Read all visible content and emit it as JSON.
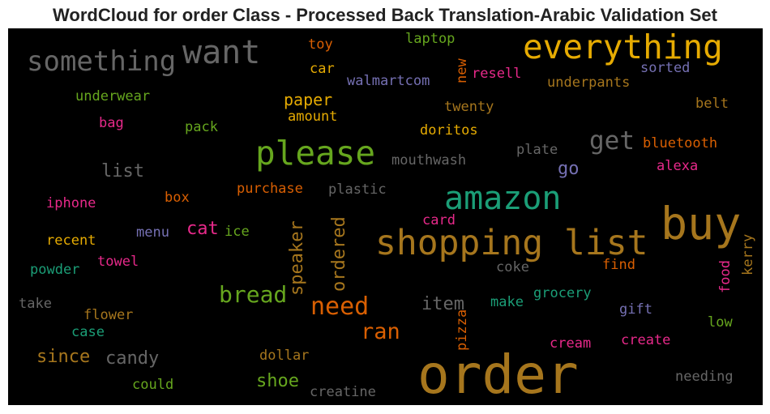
{
  "chart_data": {
    "type": "wordcloud",
    "title": "WordCloud for order Class - Processed Back Translation-Arabic Validation Set",
    "background": "#000000",
    "words": [
      {
        "text": "something",
        "color": "#666666"
      },
      {
        "text": "want",
        "color": "#666666"
      },
      {
        "text": "everything",
        "color": "#e6ab02"
      },
      {
        "text": "toy",
        "color": "#d95f02"
      },
      {
        "text": "laptop",
        "color": "#66a61e"
      },
      {
        "text": "car",
        "color": "#e6ab02"
      },
      {
        "text": "new",
        "color": "#d95f02"
      },
      {
        "text": "resell",
        "color": "#e7298a"
      },
      {
        "text": "sorted",
        "color": "#7570b3"
      },
      {
        "text": "walmartcom",
        "color": "#7570b3"
      },
      {
        "text": "underpants",
        "color": "#a6761d"
      },
      {
        "text": "underwear",
        "color": "#66a61e"
      },
      {
        "text": "paper",
        "color": "#e6ab02"
      },
      {
        "text": "twenty",
        "color": "#a6761d"
      },
      {
        "text": "belt",
        "color": "#a6761d"
      },
      {
        "text": "amount",
        "color": "#e6ab02"
      },
      {
        "text": "bag",
        "color": "#e7298a"
      },
      {
        "text": "pack",
        "color": "#66a61e"
      },
      {
        "text": "doritos",
        "color": "#e6ab02"
      },
      {
        "text": "get",
        "color": "#666666"
      },
      {
        "text": "please",
        "color": "#66a61e"
      },
      {
        "text": "plate",
        "color": "#666666"
      },
      {
        "text": "bluetooth",
        "color": "#d95f02"
      },
      {
        "text": "mouthwash",
        "color": "#666666"
      },
      {
        "text": "list",
        "color": "#666666"
      },
      {
        "text": "go",
        "color": "#7570b3"
      },
      {
        "text": "alexa",
        "color": "#e7298a"
      },
      {
        "text": "box",
        "color": "#d95f02"
      },
      {
        "text": "purchase",
        "color": "#d95f02"
      },
      {
        "text": "plastic",
        "color": "#666666"
      },
      {
        "text": "amazon",
        "color": "#1b9e77"
      },
      {
        "text": "iphone",
        "color": "#e7298a"
      },
      {
        "text": "buy",
        "color": "#a6761d"
      },
      {
        "text": "menu",
        "color": "#7570b3"
      },
      {
        "text": "cat",
        "color": "#e7298a"
      },
      {
        "text": "ice",
        "color": "#66a61e"
      },
      {
        "text": "speaker",
        "color": "#a6761d"
      },
      {
        "text": "ordered",
        "color": "#a6761d"
      },
      {
        "text": "card",
        "color": "#e7298a"
      },
      {
        "text": "shopping list",
        "color": "#a6761d"
      },
      {
        "text": "kerry",
        "color": "#a6761d"
      },
      {
        "text": "recent",
        "color": "#e6ab02"
      },
      {
        "text": "towel",
        "color": "#e7298a"
      },
      {
        "text": "powder",
        "color": "#1b9e77"
      },
      {
        "text": "coke",
        "color": "#666666"
      },
      {
        "text": "find",
        "color": "#d95f02"
      },
      {
        "text": "food",
        "color": "#e7298a"
      },
      {
        "text": "bread",
        "color": "#66a61e"
      },
      {
        "text": "need",
        "color": "#d95f02"
      },
      {
        "text": "item",
        "color": "#666666"
      },
      {
        "text": "grocery",
        "color": "#1b9e77"
      },
      {
        "text": "make",
        "color": "#1b9e77"
      },
      {
        "text": "take",
        "color": "#666666"
      },
      {
        "text": "flower",
        "color": "#a6761d"
      },
      {
        "text": "gift",
        "color": "#7570b3"
      },
      {
        "text": "low",
        "color": "#66a61e"
      },
      {
        "text": "pizza",
        "color": "#d95f02"
      },
      {
        "text": "ran",
        "color": "#d95f02"
      },
      {
        "text": "case",
        "color": "#1b9e77"
      },
      {
        "text": "create",
        "color": "#e7298a"
      },
      {
        "text": "cream",
        "color": "#e7298a"
      },
      {
        "text": "since",
        "color": "#a6761d"
      },
      {
        "text": "candy",
        "color": "#666666"
      },
      {
        "text": "dollar",
        "color": "#a6761d"
      },
      {
        "text": "order",
        "color": "#a6761d"
      },
      {
        "text": "shoe",
        "color": "#66a61e"
      },
      {
        "text": "could",
        "color": "#66a61e"
      },
      {
        "text": "needing",
        "color": "#666666"
      },
      {
        "text": "creatine",
        "color": "#666666"
      }
    ]
  }
}
